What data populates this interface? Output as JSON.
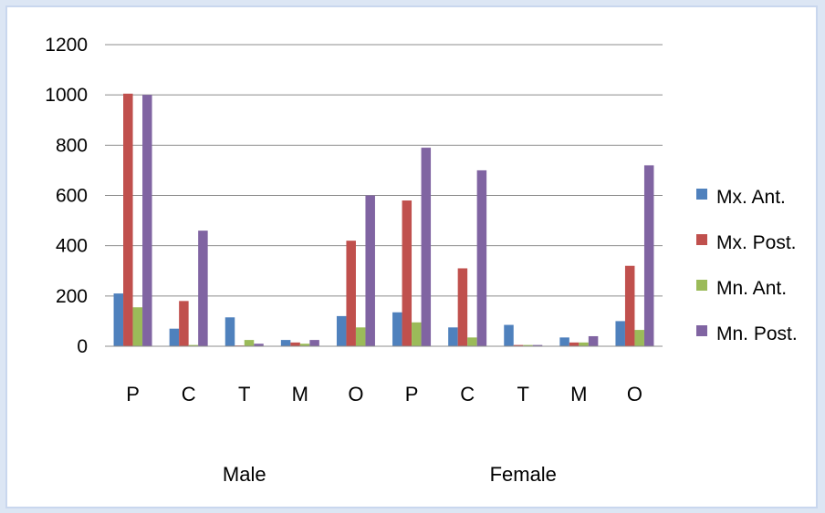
{
  "chart_data": {
    "type": "bar",
    "categories": [
      "P",
      "C",
      "T",
      "M",
      "O",
      "P",
      "C",
      "T",
      "M",
      "O"
    ],
    "groups": [
      {
        "label": "Male",
        "categories": [
          "P",
          "C",
          "T",
          "M",
          "O"
        ]
      },
      {
        "label": "Female",
        "categories": [
          "P",
          "C",
          "T",
          "M",
          "O"
        ]
      }
    ],
    "series": [
      {
        "name": "Mx. Ant.",
        "color": "#4f81bd",
        "values": [
          210,
          70,
          115,
          25,
          120,
          135,
          75,
          85,
          35,
          100
        ]
      },
      {
        "name": "Mx. Post.",
        "color": "#c0504d",
        "values": [
          1005,
          180,
          3,
          15,
          420,
          580,
          310,
          5,
          15,
          320
        ]
      },
      {
        "name": "Mn. Ant.",
        "color": "#9bbb59",
        "values": [
          155,
          5,
          25,
          10,
          75,
          95,
          35,
          5,
          15,
          65
        ]
      },
      {
        "name": "Mn. Post.",
        "color": "#8064a2",
        "values": [
          1000,
          460,
          10,
          25,
          600,
          790,
          700,
          5,
          40,
          720
        ]
      }
    ],
    "yticks": [
      0,
      200,
      400,
      600,
      800,
      1000,
      1200
    ],
    "ylim": [
      0,
      1200
    ],
    "grid": true,
    "legend": "right"
  }
}
